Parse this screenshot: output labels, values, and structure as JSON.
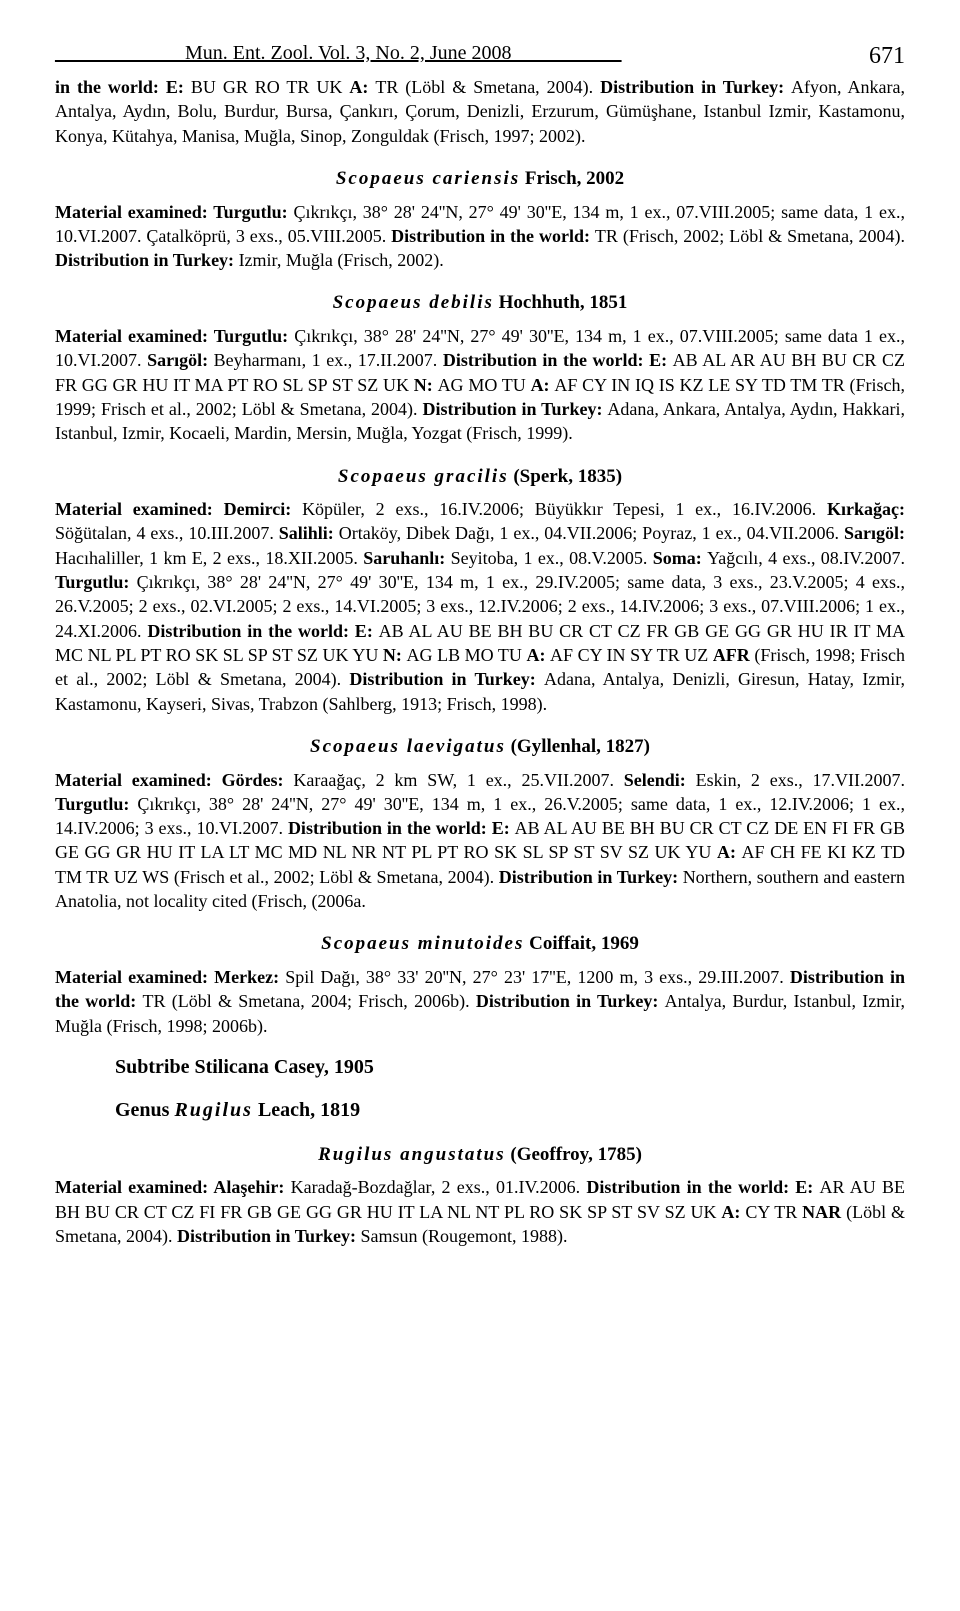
{
  "header": {
    "journal": "_____________Mun. Ent. Zool. Vol. 3, No. 2, June 2008___________",
    "page_number": "671"
  },
  "p1": {
    "text_before": "in the world: E: ",
    "text_mid1": "BU GR RO TR UK ",
    "bold1": "A: ",
    "text_mid2": "TR (Löbl & Smetana, 2004). ",
    "bold2": "Distribution in Turkey: ",
    "text_after": "Afyon, Ankara, Antalya, Aydın, Bolu, Burdur, Bursa, Çankırı, Çorum, Denizli, Erzurum, Gümüşhane, Istanbul Izmir, Kastamonu, Konya, Kütahya, Manisa, Muğla, Sinop, Zonguldak (Frisch, 1997; 2002)."
  },
  "sp1": {
    "name": "Scopaeus cariensis",
    "author": "Frisch, 2002"
  },
  "p2": {
    "b1": "Material examined: Turgutlu: ",
    "t1": "Çıkrıkçı, 38° 28' 24''N, 27° 49' 30''E, 134 m, 1 ex., 07.VIII.2005; same data, 1 ex., 10.VI.2007. Çatalköprü, 3 exs., 05.VIII.2005. ",
    "b2": "Distribution in the world: ",
    "t2": "TR (Frisch, 2002; Löbl & Smetana, 2004). ",
    "b3": "Distribution in Turkey: ",
    "t3": "Izmir, Muğla (Frisch, 2002)."
  },
  "sp2": {
    "name": "Scopaeus debilis",
    "author": "Hochhuth, 1851"
  },
  "p3": {
    "b1": "Material examined: Turgutlu: ",
    "t1": "Çıkrıkçı, 38° 28' 24''N, 27° 49' 30''E, 134 m, 1 ex., 07.VIII.2005; same data 1 ex., 10.VI.2007. ",
    "b2": "Sarıgöl: ",
    "t2": "Beyharmanı, 1 ex., 17.II.2007. ",
    "b3": "Distribution in the world: E: ",
    "t3": "AB AL AR AU BH BU CR CZ FR GG GR HU IT MA PT RO SL SP ST SZ UK ",
    "b4": "N: ",
    "t4": "AG MO TU ",
    "b5": "A: ",
    "t5": "AF CY IN IQ IS KZ LE SY TD TM TR (Frisch, 1999; Frisch et al., 2002; Löbl & Smetana, 2004). ",
    "b6": "Distribution in Turkey: ",
    "t6": "Adana, Ankara, Antalya, Aydın, Hakkari, Istanbul, Izmir, Kocaeli, Mardin, Mersin, Muğla, Yozgat (Frisch, 1999)."
  },
  "sp3": {
    "name": "Scopaeus gracilis",
    "author": "(Sperk, 1835)"
  },
  "p4": {
    "b1": "Material examined: Demirci: ",
    "t1": "Köpüler, 2 exs., 16.IV.2006; Büyükkır Tepesi, 1 ex., 16.IV.2006. ",
    "b2": "Kırkağaç: ",
    "t2": "Söğütalan, 4 exs., 10.III.2007. ",
    "b3": "Salihli: ",
    "t3": "Ortaköy, Dibek Dağı, 1 ex., 04.VII.2006; Poyraz, 1 ex., 04.VII.2006. ",
    "b4": "Sarıgöl: ",
    "t4": "Hacıhaliller, 1 km E, 2 exs., 18.XII.2005. ",
    "b5": "Saruhanlı: ",
    "t5": "Seyitoba, 1 ex., 08.V.2005. ",
    "b6": "Soma: ",
    "t6": "Yağcılı, 4 exs., 08.IV.2007. ",
    "b7": "Turgutlu: ",
    "t7": "Çıkrıkçı, 38° 28' 24''N, 27° 49' 30''E, 134 m, 1 ex., 29.IV.2005; same data, 3 exs., 23.V.2005; 4 exs., 26.V.2005; 2 exs., 02.VI.2005; 2 exs., 14.VI.2005; 3 exs., 12.IV.2006; 2 exs., 14.IV.2006; 3 exs., 07.VIII.2006; 1 ex., 24.XI.2006. ",
    "b8": "Distribution in the world: E: ",
    "t8": "AB AL AU BE BH BU CR CT CZ FR GB GE GG GR HU IR IT MA MC NL PL PT RO SK SL SP ST SZ UK YU ",
    "b9": "N: ",
    "t9": "AG LB MO TU ",
    "b10": "A: ",
    "t10": "AF CY IN SY TR UZ ",
    "b11": "AFR ",
    "t11": "(Frisch, 1998; Frisch et al., 2002; Löbl & Smetana, 2004). ",
    "b12": "Distribution in Turkey: ",
    "t12": "Adana, Antalya, Denizli, Giresun, Hatay, Izmir, Kastamonu, Kayseri, Sivas, Trabzon (Sahlberg, 1913; Frisch, 1998)."
  },
  "sp4": {
    "name": "Scopaeus laevigatus",
    "author": "(Gyllenhal, 1827)"
  },
  "p5": {
    "b1": "Material examined: Gördes: ",
    "t1": "Karaağaç, 2 km SW, 1 ex., 25.VII.2007. ",
    "b2": "Selendi: ",
    "t2": "Eskin, 2 exs., 17.VII.2007. ",
    "b3": "Turgutlu: ",
    "t3": "Çıkrıkçı, 38° 28' 24''N, 27° 49' 30''E, 134 m, 1 ex., 26.V.2005; same data, 1 ex., 12.IV.2006; 1 ex., 14.IV.2006; 3 exs., 10.VI.2007. ",
    "b4": "Distribution in the world: E: ",
    "t4": "AB AL AU BE BH BU CR CT CZ DE EN FI FR GB GE GG GR HU IT LA LT MC MD NL NR NT PL PT RO SK SL SP ST SV SZ UK YU ",
    "b5": "A: ",
    "t5": "AF CH FE KI KZ TD TM TR UZ WS (Frisch et al., 2002; Löbl & Smetana, 2004). ",
    "b6": "Distribution in Turkey: ",
    "t6": "Northern, southern and eastern Anatolia, not locality cited (Frisch, (2006a."
  },
  "sp5": {
    "name": "Scopaeus minutoides",
    "author": "Coiffait, 1969"
  },
  "p6": {
    "b1": "Material examined: Merkez: ",
    "t1": "Spil Dağı, 38° 33' 20''N, 27° 23' 17''E, 1200 m, 3 exs., 29.III.2007. ",
    "b2": "Distribution in the world: ",
    "t2": "TR (Löbl & Smetana, 2004; Frisch, 2006b). ",
    "b3": "Distribution in Turkey: ",
    "t3": "Antalya, Burdur, Istanbul, Izmir, Muğla (Frisch, 1998; 2006b)."
  },
  "subtribe": "Subtribe Stilicana Casey, 1905",
  "genus": {
    "prefix": "Genus ",
    "name": "Rugilus",
    "author": " Leach, 1819"
  },
  "sp6": {
    "name": "Rugilus angustatus",
    "author": "(Geoffroy, 1785)"
  },
  "p7": {
    "b1": "Material examined: Alaşehir: ",
    "t1": "Karadağ-Bozdağlar, 2 exs., 01.IV.2006. ",
    "b2": "Distribution in the world: E: ",
    "t2": "AR AU BE BH BU CR CT CZ FI FR GB GE GG GR HU IT LA NL NT PL RO SK SP ST SV SZ UK ",
    "b3": "A: ",
    "t3": "CY TR ",
    "b4": "NAR ",
    "t4": "(Löbl & Smetana, 2004). ",
    "b5": "Distribution in Turkey: ",
    "t5": "Samsun (Rougemont, 1988)."
  }
}
